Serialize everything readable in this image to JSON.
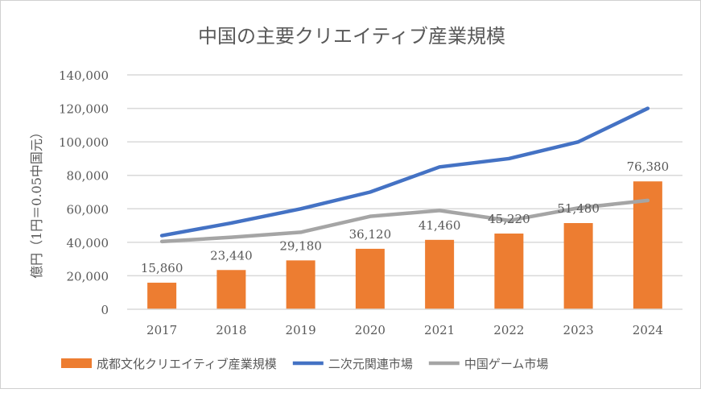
{
  "chart_data": {
    "type": "bar",
    "title": "中国の主要クリエイティブ産業規模",
    "xlabel": "",
    "ylabel": "億円（1円＝0.05中国元）",
    "ylim": [
      0,
      140000
    ],
    "yticks": [
      0,
      20000,
      40000,
      60000,
      80000,
      100000,
      120000,
      140000
    ],
    "ytick_labels": [
      "0",
      "20,000",
      "40,000",
      "60,000",
      "80,000",
      "100,000",
      "120,000",
      "140,000"
    ],
    "categories": [
      "2017",
      "2018",
      "2019",
      "2020",
      "2021",
      "2022",
      "2023",
      "2024"
    ],
    "grid": true,
    "legend_position": "bottom",
    "series": [
      {
        "name": "成都文化クリエイティブ産業規模",
        "type": "bar",
        "color": "#ED7D31",
        "values": [
          15860,
          23440,
          29180,
          36120,
          41460,
          45220,
          51480,
          76380
        ],
        "labels": [
          "15,860",
          "23,440",
          "29,180",
          "36,120",
          "41,460",
          "45,220",
          "51,480",
          "76,380"
        ]
      },
      {
        "name": "二次元関連市場",
        "type": "line",
        "color": "#4472C4",
        "values": [
          44000,
          51500,
          60000,
          70000,
          85000,
          90000,
          100000,
          120000
        ]
      },
      {
        "name": "中国ゲーム市場",
        "type": "line",
        "color": "#A5A5A5",
        "values": [
          40500,
          43000,
          46000,
          55500,
          59000,
          53000,
          60500,
          65000
        ]
      }
    ]
  }
}
